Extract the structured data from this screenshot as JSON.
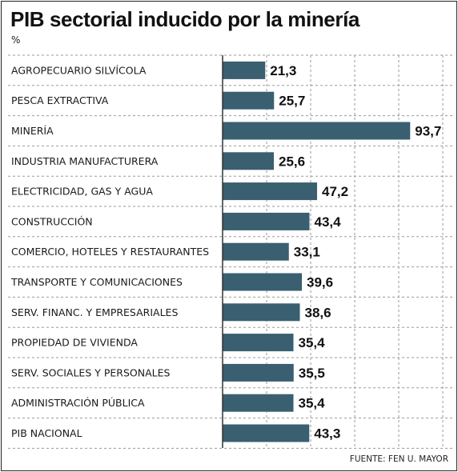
{
  "chart_data": {
    "type": "bar",
    "orientation": "horizontal",
    "title": "PIB sectorial inducido por la minería",
    "unit": "%",
    "categories": [
      "AGROPECUARIO SILVÍCOLA",
      "PESCA EXTRACTIVA",
      "MINERÍA",
      "INDUSTRIA MANUFACTURERA",
      "ELECTRICIDAD, GAS Y AGUA",
      "CONSTRUCCIÓN",
      "COMERCIO, HOTELES Y RESTAURANTES",
      "TRANSPORTE Y COMUNICACIONES",
      "SERV. FINANC. Y EMPRESARIALES",
      "PROPIEDAD DE VIVIENDA",
      "SERV. SOCIALES Y PERSONALES",
      "ADMINISTRACIÓN PÚBLICA",
      "PIB NACIONAL"
    ],
    "values": [
      21.3,
      25.7,
      93.7,
      25.6,
      47.2,
      43.4,
      33.1,
      39.6,
      38.6,
      35.4,
      35.5,
      35.4,
      43.3
    ],
    "value_labels": [
      "21,3",
      "25,7",
      "93,7",
      "25,6",
      "47,2",
      "43,4",
      "33,1",
      "39,6",
      "38,6",
      "35,4",
      "35,5",
      "35,4",
      "43,3"
    ],
    "xlim": [
      0,
      110
    ],
    "grid": "vertical dashed",
    "source": "FUENTE: FEN U. MAYOR"
  },
  "colors": {
    "bar": "#3a5f70",
    "row_divider": "#9a9a9a",
    "grid": "#9a9a9a",
    "axis": "#333333",
    "text": "#111111"
  }
}
